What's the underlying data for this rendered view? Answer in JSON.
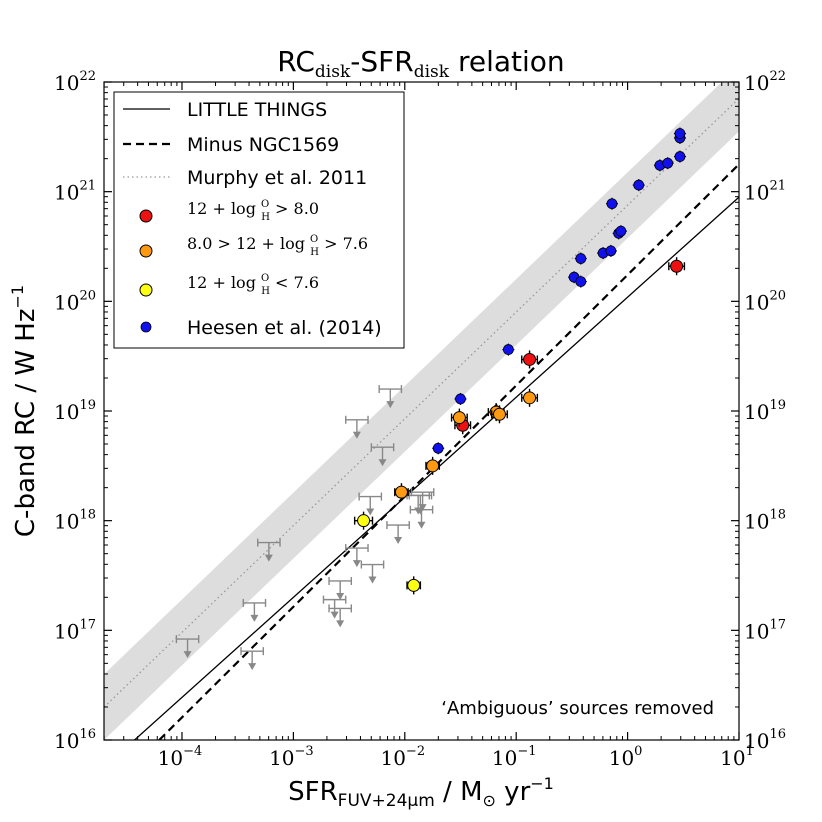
{
  "chart_data": {
    "type": "scatter",
    "title": "RC",
    "title_sub1": "disk",
    "title_mid": "-SFR",
    "title_sub2": "disk",
    "title_tail": " relation",
    "xlabel": "SFR",
    "xlabel_sub": "FUV+24μm",
    "xlabel_tail": "  /  M",
    "xlabel_odot": "⊙",
    "xlabel_unit": " yr",
    "xlabel_exp": "−1",
    "ylabel": "C-band RC  /  W Hz",
    "ylabel_exp": "−1",
    "x_log_range": [
      -4.7,
      1
    ],
    "y_log_range": [
      16,
      22
    ],
    "x_ticks": [
      {
        "base": "10",
        "exp": "−4",
        "log": -4
      },
      {
        "base": "10",
        "exp": "−3",
        "log": -3
      },
      {
        "base": "10",
        "exp": "−2",
        "log": -2
      },
      {
        "base": "10",
        "exp": "−1",
        "log": -1
      },
      {
        "base": "10",
        "exp": "0",
        "log": 0
      },
      {
        "base": "10",
        "exp": "1",
        "log": 1
      }
    ],
    "y_ticks": [
      {
        "base": "10",
        "exp": "16",
        "log": 16
      },
      {
        "base": "10",
        "exp": "17",
        "log": 17
      },
      {
        "base": "10",
        "exp": "18",
        "log": 18
      },
      {
        "base": "10",
        "exp": "19",
        "log": 19
      },
      {
        "base": "10",
        "exp": "20",
        "log": 20
      },
      {
        "base": "10",
        "exp": "21",
        "log": 21
      },
      {
        "base": "10",
        "exp": "22",
        "log": 22
      }
    ],
    "annotation": "‘Ambiguous’ sources removed",
    "lines": {
      "little_things": {
        "label": "LITTLE THINGS",
        "x": [
          -4.7,
          1
        ],
        "y": [
          15.75,
          20.95
        ]
      },
      "minus_ngc1569": {
        "label": "Minus NGC1569",
        "x": [
          -4.7,
          1
        ],
        "y": [
          15.5,
          21.25
        ]
      },
      "murphy": {
        "label": "Murphy et al. 2011",
        "x": [
          -4.7,
          1
        ],
        "y": [
          16.3,
          21.85
        ],
        "band_halfwidth": 0.3
      }
    },
    "series": [
      {
        "name": "12 + log O/H > 8.0",
        "legend_lhs": "12 + log",
        "legend_rhs": " > 8.0",
        "frac_top": "O",
        "frac_bottom": "H",
        "color": "#ee1111",
        "points": [
          [
            -1.48,
            18.87,
            0.07
          ],
          [
            -0.88,
            19.47,
            0.07
          ],
          [
            0.44,
            20.32,
            0.07
          ]
        ]
      },
      {
        "name": "8.0 > 12 + log O/H > 7.6",
        "legend_lhs": "8.0 > 12 + log",
        "legend_rhs": " > 7.6",
        "frac_top": "O",
        "frac_bottom": "H",
        "color": "#ff9911",
        "points": [
          [
            -1.51,
            18.94,
            0.07
          ],
          [
            -1.18,
            18.99,
            0.07
          ],
          [
            -1.15,
            18.97,
            0.07
          ],
          [
            -0.88,
            19.12,
            0.07
          ],
          [
            -1.75,
            18.5,
            0.06
          ],
          [
            -2.03,
            18.26,
            0.06
          ]
        ]
      },
      {
        "name": "12 + log O/H < 7.6",
        "legend_lhs": "12 + log",
        "legend_rhs": " < 7.6",
        "frac_top": "O",
        "frac_bottom": "H",
        "color": "#ffff11",
        "points": [
          [
            -2.37,
            18.0,
            0.08
          ],
          [
            -1.92,
            17.41,
            0.06
          ]
        ]
      },
      {
        "name": "Heesen et al. (2014)",
        "legend_lhs": "Heesen et al. (2014)",
        "legend_rhs": "",
        "frac_top": "",
        "frac_bottom": "",
        "color": "#1111ee",
        "points": [
          [
            -1.5,
            19.11,
            0
          ],
          [
            -1.7,
            18.66,
            0
          ],
          [
            -1.07,
            19.56,
            0
          ],
          [
            -0.48,
            20.22,
            0
          ],
          [
            -0.42,
            20.18,
            0
          ],
          [
            -0.42,
            20.39,
            0
          ],
          [
            -0.22,
            20.44,
            0
          ],
          [
            -0.15,
            20.46,
            0
          ],
          [
            -0.08,
            20.62,
            0
          ],
          [
            -0.06,
            20.64,
            0
          ],
          [
            -0.14,
            20.89,
            0
          ],
          [
            0.1,
            21.06,
            0
          ],
          [
            0.29,
            21.24,
            0
          ],
          [
            0.36,
            21.26,
            0
          ],
          [
            0.47,
            21.32,
            0
          ],
          [
            0.47,
            21.49,
            0
          ],
          [
            0.47,
            21.53,
            0
          ]
        ]
      }
    ],
    "upper_limits": [
      [
        -3.95,
        16.92
      ],
      [
        -3.37,
        16.81
      ],
      [
        -3.35,
        17.25
      ],
      [
        -3.22,
        17.8
      ],
      [
        -2.58,
        17.45
      ],
      [
        -2.43,
        18.92
      ],
      [
        -2.2,
        18.67
      ],
      [
        -2.13,
        19.2
      ],
      [
        -2.43,
        17.75
      ],
      [
        -2.29,
        17.6
      ],
      [
        -2.06,
        17.96
      ],
      [
        -1.88,
        18.23
      ],
      [
        -1.86,
        18.23
      ],
      [
        -1.85,
        18.1
      ],
      [
        -1.84,
        18.26
      ],
      [
        -2.31,
        18.22
      ],
      [
        -2.63,
        17.28
      ],
      [
        -2.58,
        17.2
      ]
    ],
    "legend": [
      {
        "key": "little_things",
        "label": "LITTLE THINGS"
      },
      {
        "key": "minus_ngc1569",
        "label": "Minus NGC1569"
      },
      {
        "key": "murphy",
        "label": "Murphy et al. 2011"
      }
    ],
    "colors": {
      "band": "#dddddd",
      "upper_limit": "#888888",
      "text": "#000000"
    }
  }
}
